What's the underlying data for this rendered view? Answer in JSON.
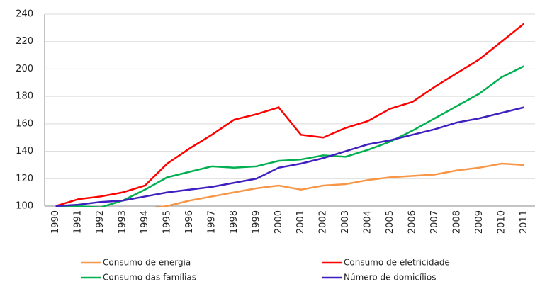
{
  "chart_data": {
    "type": "line",
    "categories": [
      "1990",
      "1991",
      "1992",
      "1993",
      "1994",
      "1995",
      "1996",
      "1997",
      "1998",
      "1999",
      "2000",
      "2001",
      "2002",
      "2003",
      "2004",
      "2005",
      "2006",
      "2007",
      "2008",
      "2009",
      "2010",
      "2011"
    ],
    "series": [
      {
        "name": "Consumo de energia",
        "color": "#f79646",
        "values": [
          100,
          98,
          97,
          97,
          98,
          100,
          104,
          107,
          110,
          113,
          115,
          112,
          115,
          116,
          119,
          121,
          122,
          123,
          126,
          128,
          131,
          130
        ]
      },
      {
        "name": "Consumo de eletricidade",
        "color": "#ff0000",
        "values": [
          100,
          105,
          107,
          110,
          115,
          131,
          142,
          152,
          163,
          167,
          172,
          152,
          150,
          157,
          162,
          171,
          176,
          187,
          197,
          207,
          220,
          233
        ]
      },
      {
        "name": "Consumo das famílias",
        "color": "#00b050",
        "values": [
          100,
          100,
          99,
          104,
          112,
          121,
          125,
          129,
          128,
          129,
          133,
          134,
          137,
          136,
          141,
          147,
          155,
          164,
          173,
          182,
          194,
          202
        ]
      },
      {
        "name": "Número de domicílios",
        "color": "#3f1fbf",
        "values": [
          100,
          101,
          103,
          104,
          107,
          110,
          112,
          114,
          117,
          120,
          128,
          131,
          135,
          140,
          145,
          148,
          152,
          156,
          161,
          164,
          168,
          172
        ]
      }
    ],
    "ylim": [
      100,
      240
    ],
    "yticks": [
      100,
      120,
      140,
      160,
      180,
      200,
      220,
      240
    ],
    "grid": true
  }
}
